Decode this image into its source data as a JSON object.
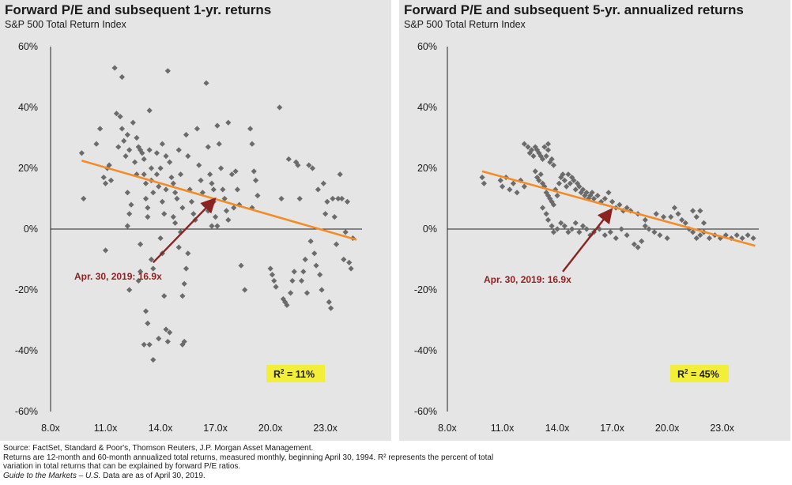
{
  "colors": {
    "panel_bg": "#e5e5e5",
    "dot": "#6b6b6b",
    "trendline": "#f28c28",
    "arrow": "#8b2323",
    "annotation": "#8b2323",
    "r2_box": "#f3ee3a"
  },
  "chart_data": [
    {
      "type": "scatter",
      "title": "Forward P/E and subsequent 1-yr. returns",
      "subtitle": "S&P 500 Total Return Index",
      "xlabel": "",
      "ylabel": "",
      "xlim": [
        8,
        25
      ],
      "ylim": [
        -60,
        60
      ],
      "x_ticks": [
        8,
        11,
        14,
        17,
        20,
        23
      ],
      "x_tick_labels": [
        "8.0x",
        "11.0x",
        "14.0x",
        "17.0x",
        "20.0x",
        "23.0x"
      ],
      "y_ticks": [
        60,
        40,
        20,
        0,
        -20,
        -40,
        -60
      ],
      "y_tick_labels": [
        "60%",
        "40%",
        "20%",
        "0%",
        "-20%",
        "-40%",
        "-60%"
      ],
      "trendline": {
        "x": [
          9.7,
          24.7
        ],
        "y": [
          22.5,
          -3.5
        ]
      },
      "annotation": {
        "text": "Apr. 30, 2019: 16.9x",
        "arrow_from": [
          13.6,
          -11
        ],
        "arrow_to": [
          16.9,
          9.5
        ]
      },
      "r_squared_label": "R",
      "r_squared_sup": "2",
      "r_squared_value": "=   11%",
      "points": [
        [
          9.7,
          25
        ],
        [
          9.8,
          10
        ],
        [
          10.5,
          28
        ],
        [
          10.7,
          33
        ],
        [
          10.9,
          17
        ],
        [
          11.0,
          15
        ],
        [
          11.1,
          20
        ],
        [
          11.2,
          21
        ],
        [
          11.3,
          16
        ],
        [
          11.0,
          -7
        ],
        [
          11.5,
          53
        ],
        [
          11.6,
          38
        ],
        [
          11.7,
          27
        ],
        [
          11.8,
          37
        ],
        [
          11.9,
          50
        ],
        [
          11.9,
          33
        ],
        [
          12.0,
          29
        ],
        [
          12.1,
          24
        ],
        [
          12.2,
          31
        ],
        [
          12.3,
          26
        ],
        [
          12.2,
          12
        ],
        [
          12.3,
          5
        ],
        [
          12.4,
          8
        ],
        [
          12.2,
          1
        ],
        [
          12.5,
          35
        ],
        [
          12.6,
          22
        ],
        [
          12.7,
          30
        ],
        [
          12.7,
          18
        ],
        [
          12.8,
          27
        ],
        [
          12.9,
          26
        ],
        [
          12.3,
          -20
        ],
        [
          12.8,
          -17
        ],
        [
          12.9,
          -14
        ],
        [
          12.9,
          -5
        ],
        [
          13.0,
          25
        ],
        [
          13.1,
          23
        ],
        [
          13.1,
          18
        ],
        [
          13.2,
          15
        ],
        [
          13.2,
          10
        ],
        [
          13.3,
          7
        ],
        [
          13.3,
          4
        ],
        [
          13.4,
          39
        ],
        [
          13.4,
          26
        ],
        [
          13.5,
          20
        ],
        [
          13.5,
          16
        ],
        [
          13.6,
          12
        ],
        [
          13.5,
          -10
        ],
        [
          13.6,
          -13
        ],
        [
          13.2,
          -27
        ],
        [
          13.3,
          -31
        ],
        [
          13.1,
          -38
        ],
        [
          13.4,
          -38
        ],
        [
          13.6,
          -43
        ],
        [
          13.8,
          25
        ],
        [
          13.8,
          18
        ],
        [
          13.9,
          14
        ],
        [
          14.0,
          20
        ],
        [
          14.1,
          28
        ],
        [
          14.1,
          9
        ],
        [
          14.2,
          5
        ],
        [
          14.3,
          24
        ],
        [
          14.3,
          13
        ],
        [
          14.2,
          -22
        ],
        [
          14.1,
          -8
        ],
        [
          14.0,
          -3
        ],
        [
          13.9,
          -36
        ],
        [
          14.3,
          -33
        ],
        [
          14.4,
          -37
        ],
        [
          14.5,
          -34
        ],
        [
          14.4,
          52
        ],
        [
          14.5,
          22
        ],
        [
          14.6,
          17
        ],
        [
          14.7,
          15
        ],
        [
          14.8,
          12
        ],
        [
          14.9,
          10
        ],
        [
          14.7,
          4
        ],
        [
          14.8,
          2
        ],
        [
          15.0,
          26
        ],
        [
          15.1,
          18
        ],
        [
          15.2,
          7
        ],
        [
          15.1,
          -1
        ],
        [
          15.0,
          -6
        ],
        [
          15.2,
          -22
        ],
        [
          15.3,
          -18
        ],
        [
          15.4,
          -13
        ],
        [
          15.5,
          -8
        ],
        [
          15.3,
          -37
        ],
        [
          15.2,
          -38
        ],
        [
          15.4,
          31
        ],
        [
          15.5,
          24
        ],
        [
          15.6,
          13
        ],
        [
          15.7,
          9
        ],
        [
          15.8,
          5
        ],
        [
          15.9,
          3
        ],
        [
          16.0,
          33
        ],
        [
          16.1,
          21
        ],
        [
          16.2,
          16
        ],
        [
          16.3,
          12
        ],
        [
          16.4,
          8
        ],
        [
          16.5,
          48
        ],
        [
          16.6,
          27
        ],
        [
          16.7,
          18
        ],
        [
          16.8,
          15
        ],
        [
          16.9,
          13
        ],
        [
          16.9,
          9
        ],
        [
          17.0,
          4
        ],
        [
          17.1,
          1
        ],
        [
          16.6,
          6
        ],
        [
          16.8,
          1
        ],
        [
          17.1,
          34
        ],
        [
          17.2,
          28
        ],
        [
          17.3,
          20
        ],
        [
          17.4,
          13
        ],
        [
          17.5,
          10
        ],
        [
          17.6,
          6
        ],
        [
          17.7,
          3
        ],
        [
          17.7,
          35
        ],
        [
          17.9,
          18
        ],
        [
          18.1,
          19
        ],
        [
          18.2,
          13
        ],
        [
          18.3,
          8
        ],
        [
          18.0,
          7
        ],
        [
          18.6,
          -20
        ],
        [
          18.4,
          -12
        ],
        [
          18.9,
          33
        ],
        [
          19.0,
          28
        ],
        [
          19.1,
          19
        ],
        [
          19.2,
          16
        ],
        [
          19.3,
          11
        ],
        [
          19.0,
          7
        ],
        [
          20.0,
          -13
        ],
        [
          20.1,
          -15
        ],
        [
          20.2,
          -17
        ],
        [
          20.3,
          -19
        ],
        [
          20.5,
          40
        ],
        [
          20.6,
          10
        ],
        [
          20.7,
          -23
        ],
        [
          20.8,
          -24
        ],
        [
          20.9,
          -25
        ],
        [
          21.0,
          23
        ],
        [
          21.1,
          -21
        ],
        [
          21.2,
          -17
        ],
        [
          21.3,
          -14
        ],
        [
          21.4,
          22
        ],
        [
          21.5,
          21
        ],
        [
          21.6,
          10
        ],
        [
          21.7,
          -17
        ],
        [
          21.8,
          -14
        ],
        [
          21.9,
          -10
        ],
        [
          22.0,
          -21
        ],
        [
          22.1,
          21
        ],
        [
          22.2,
          -4
        ],
        [
          22.3,
          20
        ],
        [
          22.4,
          -8
        ],
        [
          22.5,
          -12
        ],
        [
          22.6,
          13
        ],
        [
          22.7,
          -15
        ],
        [
          22.8,
          -20
        ],
        [
          22.9,
          15
        ],
        [
          23.0,
          5
        ],
        [
          23.1,
          9
        ],
        [
          23.2,
          -24
        ],
        [
          23.3,
          -26
        ],
        [
          23.4,
          10
        ],
        [
          23.5,
          4
        ],
        [
          23.6,
          -5
        ],
        [
          23.7,
          10
        ],
        [
          23.8,
          18
        ],
        [
          23.9,
          10
        ],
        [
          24.0,
          -10
        ],
        [
          24.1,
          -1
        ],
        [
          24.2,
          9
        ],
        [
          24.3,
          -11
        ],
        [
          24.4,
          -13
        ],
        [
          24.5,
          -3
        ]
      ]
    },
    {
      "type": "scatter",
      "title": "Forward P/E and subsequent 5-yr. annualized returns",
      "subtitle": "S&P 500 Total Return Index",
      "xlabel": "",
      "ylabel": "",
      "xlim": [
        8,
        25
      ],
      "ylim": [
        -60,
        60
      ],
      "x_ticks": [
        8,
        11,
        14,
        17,
        20,
        23
      ],
      "x_tick_labels": [
        "8.0x",
        "11.0x",
        "14.0x",
        "17.0x",
        "20.0x",
        "23.0x"
      ],
      "y_ticks": [
        60,
        40,
        20,
        0,
        -20,
        -40,
        -60
      ],
      "y_tick_labels": [
        "60%",
        "40%",
        "20%",
        "0%",
        "-20%",
        "-40%",
        "-60%"
      ],
      "trendline": {
        "x": [
          9.9,
          24.8
        ],
        "y": [
          19,
          -5.5
        ]
      },
      "annotation": {
        "text": "Apr. 30, 2019: 16.9x",
        "arrow_from": [
          14.3,
          -14
        ],
        "arrow_to": [
          16.9,
          6
        ]
      },
      "r_squared_label": "R",
      "r_squared_sup": "2",
      "r_squared_value": "=   45%",
      "points": [
        [
          9.9,
          17
        ],
        [
          10.0,
          15
        ],
        [
          10.9,
          16
        ],
        [
          11.0,
          14
        ],
        [
          11.2,
          17
        ],
        [
          11.4,
          13
        ],
        [
          11.6,
          15
        ],
        [
          11.8,
          12
        ],
        [
          12.0,
          16
        ],
        [
          12.2,
          14
        ],
        [
          12.2,
          28
        ],
        [
          12.4,
          27
        ],
        [
          12.5,
          25
        ],
        [
          12.6,
          26
        ],
        [
          12.7,
          24
        ],
        [
          12.8,
          27
        ],
        [
          12.9,
          26
        ],
        [
          13.0,
          25
        ],
        [
          13.1,
          24
        ],
        [
          13.2,
          23
        ],
        [
          13.3,
          27
        ],
        [
          13.4,
          24
        ],
        [
          13.5,
          26
        ],
        [
          13.5,
          28
        ],
        [
          13.6,
          22
        ],
        [
          13.7,
          23
        ],
        [
          13.8,
          21
        ],
        [
          12.8,
          19
        ],
        [
          12.9,
          17
        ],
        [
          13.0,
          16
        ],
        [
          13.1,
          18
        ],
        [
          13.2,
          15
        ],
        [
          13.3,
          14
        ],
        [
          13.4,
          12
        ],
        [
          13.5,
          11
        ],
        [
          13.6,
          10
        ],
        [
          13.7,
          9
        ],
        [
          13.8,
          8
        ],
        [
          13.9,
          13
        ],
        [
          14.0,
          11
        ],
        [
          14.1,
          15
        ],
        [
          14.2,
          17
        ],
        [
          14.3,
          18
        ],
        [
          14.4,
          16
        ],
        [
          14.5,
          14
        ],
        [
          14.6,
          18
        ],
        [
          14.7,
          15
        ],
        [
          14.8,
          17
        ],
        [
          14.9,
          16
        ],
        [
          15.0,
          13
        ],
        [
          15.1,
          15
        ],
        [
          15.2,
          14
        ],
        [
          15.3,
          12
        ],
        [
          15.4,
          13
        ],
        [
          15.5,
          11
        ],
        [
          15.6,
          12
        ],
        [
          15.7,
          10
        ],
        [
          15.8,
          11
        ],
        [
          15.9,
          12
        ],
        [
          16.0,
          10
        ],
        [
          16.2,
          11
        ],
        [
          16.4,
          9
        ],
        [
          16.6,
          10
        ],
        [
          16.8,
          12
        ],
        [
          17.0,
          9
        ],
        [
          17.2,
          7
        ],
        [
          17.4,
          8
        ],
        [
          17.6,
          6
        ],
        [
          17.8,
          7
        ],
        [
          18.0,
          6
        ],
        [
          13.2,
          7
        ],
        [
          13.4,
          5
        ],
        [
          13.5,
          3
        ],
        [
          13.7,
          1
        ],
        [
          13.8,
          -1
        ],
        [
          14.0,
          0
        ],
        [
          14.2,
          2
        ],
        [
          14.4,
          1
        ],
        [
          14.6,
          -1
        ],
        [
          14.8,
          0
        ],
        [
          15.0,
          2
        ],
        [
          15.2,
          -1
        ],
        [
          15.4,
          1
        ],
        [
          15.6,
          0
        ],
        [
          15.8,
          -2
        ],
        [
          16.0,
          -1
        ],
        [
          16.3,
          0
        ],
        [
          16.6,
          -2
        ],
        [
          16.9,
          -1
        ],
        [
          17.2,
          -3
        ],
        [
          17.5,
          0
        ],
        [
          17.8,
          -2
        ],
        [
          18.2,
          -5
        ],
        [
          18.4,
          -6
        ],
        [
          18.6,
          -4
        ],
        [
          18.8,
          1
        ],
        [
          19.0,
          0
        ],
        [
          19.3,
          -1
        ],
        [
          19.6,
          -2
        ],
        [
          20.0,
          -3
        ],
        [
          20.2,
          4
        ],
        [
          20.4,
          7
        ],
        [
          20.6,
          5
        ],
        [
          20.8,
          3
        ],
        [
          21.0,
          2
        ],
        [
          21.2,
          0
        ],
        [
          21.4,
          -1
        ],
        [
          21.6,
          -3
        ],
        [
          21.8,
          -2
        ],
        [
          22.0,
          -1
        ],
        [
          22.3,
          -3
        ],
        [
          22.6,
          -2
        ],
        [
          22.9,
          -3
        ],
        [
          23.2,
          -2
        ],
        [
          23.5,
          -3
        ],
        [
          23.8,
          -2
        ],
        [
          24.1,
          -3
        ],
        [
          24.4,
          -2
        ],
        [
          24.7,
          -3
        ],
        [
          21.4,
          6
        ],
        [
          21.6,
          4
        ],
        [
          21.8,
          6
        ],
        [
          22.0,
          2
        ],
        [
          19.4,
          5
        ],
        [
          19.8,
          4
        ],
        [
          18.4,
          5
        ],
        [
          18.8,
          3
        ]
      ]
    }
  ],
  "footer": {
    "line1": "Source: FactSet, Standard & Poor's, Thomson Reuters, J.P. Morgan Asset Management.",
    "line2": "Returns are 12-month and 60-month annualized total returns, measured monthly, beginning April 30, 1994. R² represents the percent of total",
    "line3": "variation in total returns that can be explained by forward P/E ratios.",
    "line4_italic": "Guide to the Markets – U.S.",
    "line4_rest": " Data are as of April 30, 2019."
  }
}
